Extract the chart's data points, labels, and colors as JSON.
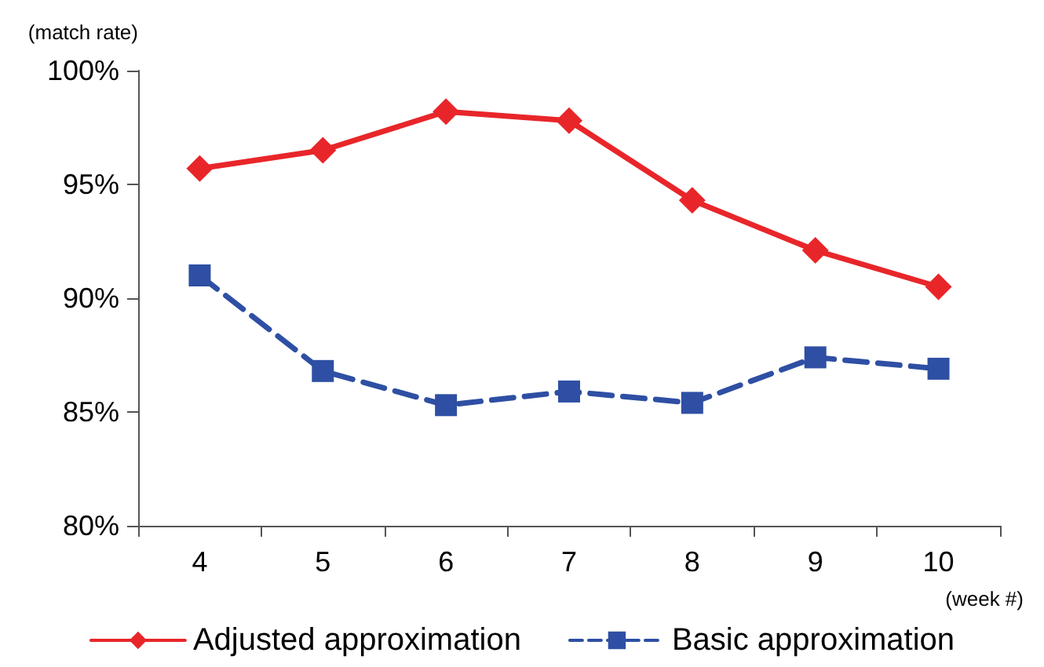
{
  "chart_data": {
    "type": "line",
    "xlabel": "(week #)",
    "ylabel": "(match rate)",
    "categories": [
      "4",
      "5",
      "6",
      "7",
      "8",
      "9",
      "10"
    ],
    "series": [
      {
        "name": "Adjusted approximation",
        "color": "#e8262a",
        "marker": "diamond",
        "line_style": "solid",
        "values": [
          95.7,
          96.5,
          98.2,
          97.8,
          94.3,
          92.1,
          90.5
        ]
      },
      {
        "name": "Basic approximation",
        "color": "#2e4fa3",
        "marker": "square",
        "line_style": "dashed",
        "values": [
          91.0,
          86.8,
          85.3,
          85.9,
          85.4,
          87.4,
          86.9
        ]
      }
    ],
    "ylim": [
      80,
      100
    ],
    "yticks": [
      {
        "value": 80,
        "label": "80%"
      },
      {
        "value": 85,
        "label": "85%"
      },
      {
        "value": 90,
        "label": "90%"
      },
      {
        "value": 95,
        "label": "95%"
      },
      {
        "value": 100,
        "label": "100%"
      }
    ],
    "grid": false,
    "legend": "bottom"
  }
}
